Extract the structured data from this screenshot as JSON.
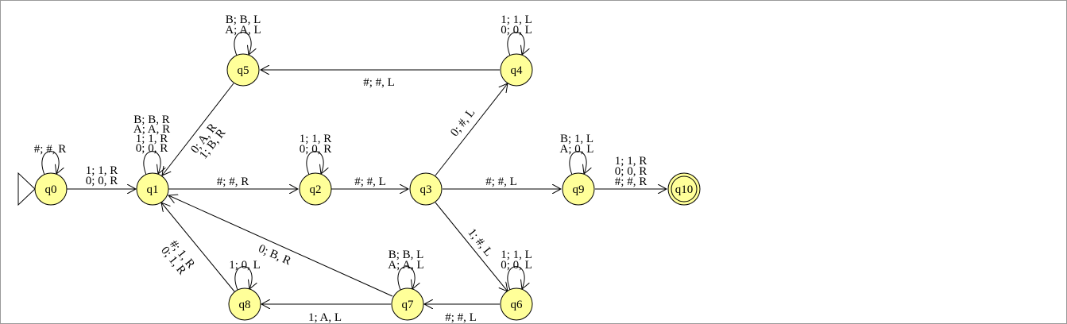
{
  "colors": {
    "state_fill": "#ffff99",
    "stroke": "#000000",
    "border": "#9a9a9a",
    "background": "#ffffff"
  },
  "states": {
    "q0": "q0",
    "q1": "q1",
    "q2": "q2",
    "q3": "q3",
    "q4": "q4",
    "q5": "q5",
    "q6": "q6",
    "q7": "q7",
    "q8": "q8",
    "q9": "q9",
    "q10": "q10"
  },
  "start_state": "q0",
  "accept_state": "q10",
  "transitions": {
    "q0_q0": [
      "#; #, R"
    ],
    "q0_q1": [
      "1; 1, R",
      "0; 0, R"
    ],
    "q1_q1": [
      "B; B, R",
      "A; A, R",
      "1; 1, R",
      "0; 0, R"
    ],
    "q1_q2": [
      "#; #, R"
    ],
    "q2_q2": [
      "1; 1, R",
      "0; 0, R"
    ],
    "q2_q3": [
      "#; #, L"
    ],
    "q3_q4": [
      "0; #, L"
    ],
    "q4_q4": [
      "1; 1, L",
      "0; 0, L"
    ],
    "q4_q5": [
      "#; #, L"
    ],
    "q5_q5": [
      "B; B, L",
      "A; A, L"
    ],
    "q5_q1": [
      "0; A, R",
      "1; B, R"
    ],
    "q3_q9": [
      "#; #, L"
    ],
    "q9_q9": [
      "B; 1, L",
      "A; 0, L"
    ],
    "q9_q10": [
      "1; 1, R",
      "0; 0, R",
      "#; #, R"
    ],
    "q3_q6": [
      "1; #, L"
    ],
    "q6_q6": [
      "1; 1, L",
      "0; 0, L"
    ],
    "q6_q7": [
      "#; #, L"
    ],
    "q7_q7": [
      "B; B, L",
      "A; A, L"
    ],
    "q7_q8": [
      "1; A, L"
    ],
    "q7_q1": [
      "0; B, R"
    ],
    "q8_q8": [
      "1; 0, L"
    ],
    "q8_q1": [
      "#; 1, R",
      "0; 1, R"
    ]
  }
}
